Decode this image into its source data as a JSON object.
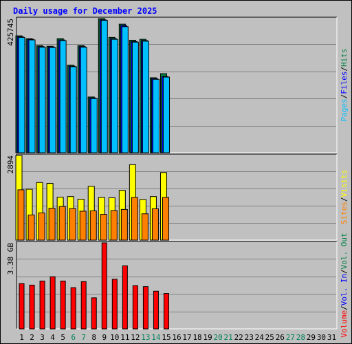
{
  "chart_data": {
    "type": "bar",
    "title": "Daily usage for December 2025",
    "categories": [
      "1",
      "2",
      "3",
      "4",
      "5",
      "6",
      "7",
      "8",
      "9",
      "10",
      "11",
      "12",
      "13",
      "14",
      "15",
      "16",
      "17",
      "18",
      "19",
      "20",
      "21",
      "22",
      "23",
      "24",
      "25",
      "26",
      "27",
      "28",
      "29",
      "30",
      "31"
    ],
    "weekend_days": [
      "6",
      "7",
      "13",
      "14",
      "20",
      "21",
      "27",
      "28"
    ],
    "panels": [
      {
        "id": "top",
        "ylabel": "425745",
        "ymax": 425745,
        "right_legend": [
          {
            "text": "Hits",
            "color": "#008040"
          },
          {
            "text": "Files",
            "color": "#0000ff"
          },
          {
            "text": "Pages",
            "color": "#00c0ff"
          }
        ],
        "series": [
          {
            "name": "Hits",
            "color": "#008040",
            "values": [
              371000,
              362000,
              340000,
              338000,
              362000,
              278000,
              340000,
              177000,
              425745,
              366000,
              408000,
              357000,
              360000,
              238000,
              251000
            ]
          },
          {
            "name": "Files",
            "color": "#0000ff",
            "values": [
              368000,
              360000,
              337000,
              336000,
              358000,
              275000,
              337000,
              174000,
              422000,
              362000,
              404000,
              353000,
              356000,
              235000,
              242000
            ]
          },
          {
            "name": "Pages",
            "color": "#00c0ff",
            "values": [
              366000,
              358000,
              335000,
              334000,
              356000,
              273000,
              335000,
              172000,
              420000,
              360000,
              400000,
              351000,
              354000,
              233000,
              240000
            ]
          }
        ]
      },
      {
        "id": "middle",
        "ylabel": "2894",
        "ymax": 2894,
        "right_legend": [
          {
            "text": "Visits",
            "color": "#ffff00"
          },
          {
            "text": "Sites",
            "color": "#ff8000"
          }
        ],
        "series": [
          {
            "name": "Visits",
            "color": "#ffff00",
            "values": [
              2894,
              1740,
              1970,
              1940,
              1470,
              1490,
              1400,
              1840,
              1460,
              1450,
              1700,
              2580,
              1390,
              1490,
              2310
            ]
          },
          {
            "name": "Sites",
            "color": "#ff8000",
            "values": [
              1720,
              860,
              930,
              1090,
              1150,
              1080,
              990,
              1000,
              880,
              1010,
              1050,
              1460,
              900,
              1070,
              1460
            ]
          }
        ]
      },
      {
        "id": "bottom",
        "ylabel": "3.38 GB",
        "ymax": 3.38,
        "right_legend": [
          {
            "text": "Vol. Out",
            "color": "#008040"
          },
          {
            "text": "Vol. In",
            "color": "#0000ff"
          },
          {
            "text": "Volume",
            "color": "#ff0000"
          }
        ],
        "series": [
          {
            "name": "Volume",
            "color": "#ff0000",
            "values": [
              1.78,
              1.72,
              1.88,
              2.05,
              1.88,
              1.62,
              1.86,
              1.22,
              3.38,
              1.95,
              2.48,
              1.7,
              1.66,
              1.48,
              1.39
            ]
          }
        ]
      }
    ]
  }
}
